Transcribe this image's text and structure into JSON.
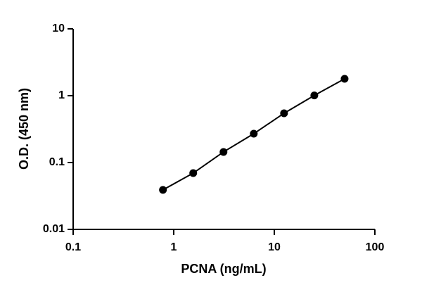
{
  "chart_data": {
    "type": "line",
    "x_label": "PCNA (ng/mL)",
    "y_label": "O.D. (450 nm)",
    "x": [
      0.78125,
      1.5625,
      3.125,
      6.25,
      12.5,
      25,
      50
    ],
    "values": [
      0.039,
      0.0695,
      0.144,
      0.27,
      0.546,
      1.01,
      1.79
    ],
    "color": "#000000",
    "markers": true,
    "xscale": "log",
    "yscale": "log",
    "xlim": [
      0.1,
      100
    ],
    "ylim": [
      0.01,
      10
    ],
    "xticks": [
      0.1,
      1,
      10,
      100
    ],
    "yticks": [
      0.01,
      0.1,
      1,
      10
    ],
    "grid": false
  }
}
